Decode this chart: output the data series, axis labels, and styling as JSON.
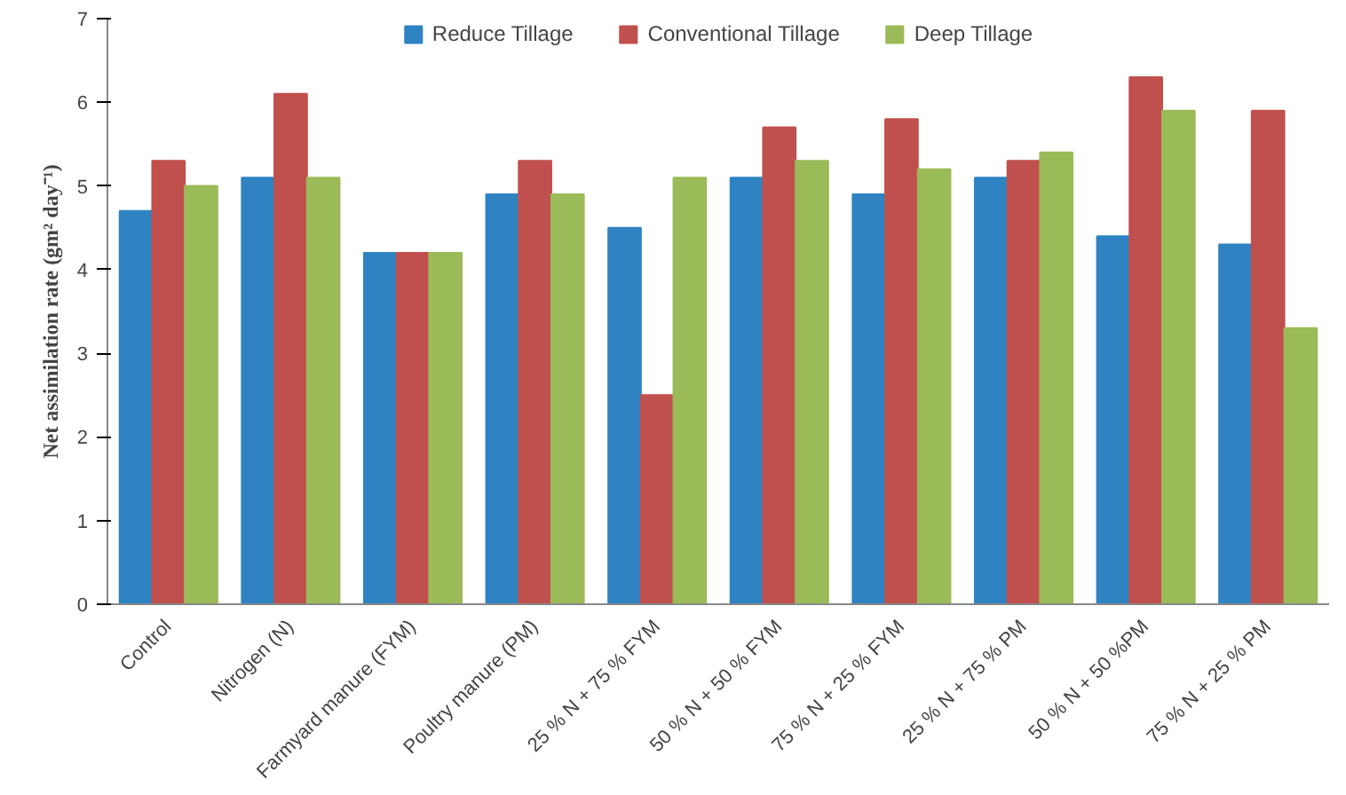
{
  "chart_data": {
    "type": "bar",
    "ylabel": "Net assimilation rate (gm² day⁻¹)",
    "categories": [
      "Control",
      "Nitrogen (N)",
      "Farmyard manure (FYM)",
      "Poultry manure (PM)",
      "25 % N + 75 % FYM",
      "50 % N + 50 % FYM",
      "75 % N + 25 % FYM",
      "25 % N + 75 % PM",
      "50 % N + 50 %PM",
      "75 % N + 25 % PM"
    ],
    "series": [
      {
        "name": "Reduce Tillage",
        "color": "#2f83c3",
        "values": [
          4.7,
          5.1,
          4.2,
          4.9,
          4.5,
          5.1,
          4.9,
          5.1,
          4.4,
          4.3
        ]
      },
      {
        "name": "Conventional Tillage",
        "color": "#c0504d",
        "values": [
          5.3,
          6.1,
          4.2,
          5.3,
          2.5,
          5.7,
          5.8,
          5.3,
          6.3,
          5.9
        ]
      },
      {
        "name": "Deep Tillage",
        "color": "#9bbb59",
        "values": [
          5.0,
          5.1,
          4.2,
          4.9,
          5.1,
          5.3,
          5.2,
          5.4,
          5.9,
          3.3
        ]
      }
    ],
    "ylim": [
      0,
      7
    ],
    "yticks": [
      0,
      1,
      2,
      3,
      4,
      5,
      6,
      7
    ],
    "grid": false,
    "legend": "top"
  }
}
